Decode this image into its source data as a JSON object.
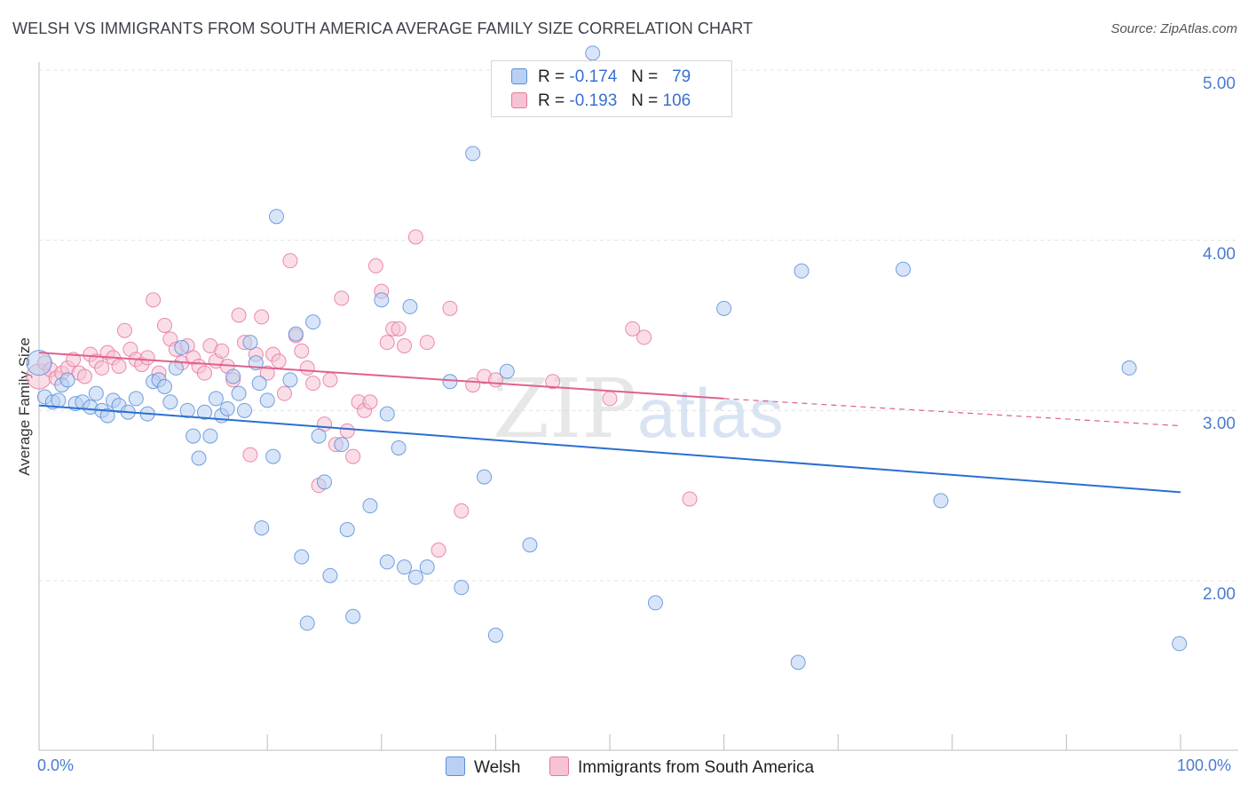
{
  "title": "WELSH VS IMMIGRANTS FROM SOUTH AMERICA AVERAGE FAMILY SIZE CORRELATION CHART",
  "source": "Source: ZipAtlas.com",
  "colors": {
    "welsh": "#5b8fd8",
    "welsh_fill": "#b8d0f2",
    "welsh_line": "#2a6fd0",
    "immigrants": "#e8779c",
    "immigrants_fill": "#f6c3d4",
    "immigrants_line": "#e0608c",
    "tick_text": "#4a7bd0"
  },
  "legend": {
    "r_label": "R =",
    "n_label": "N =",
    "welsh": {
      "r": "-0.174",
      "n": "79"
    },
    "immigrants": {
      "r": "-0.193",
      "n": "106"
    }
  },
  "watermark": {
    "zip": "ZIP",
    "atlas": "atlas"
  },
  "chart_data": {
    "type": "scatter",
    "title": "WELSH VS IMMIGRANTS FROM SOUTH AMERICA AVERAGE FAMILY SIZE CORRELATION CHART",
    "xlabel": "",
    "ylabel": "Average Family Size",
    "x_tick_labels": [
      "0.0%",
      "100.0%"
    ],
    "y_tick_labels": [
      "2.00",
      "3.00",
      "4.00",
      "5.00"
    ],
    "y_ticks": [
      2.0,
      3.0,
      4.0,
      5.0
    ],
    "xlim": [
      0,
      100
    ],
    "ylim": [
      1.0,
      5.1
    ],
    "grid": true,
    "legend_position": "bottom",
    "series": [
      {
        "name": "Welsh",
        "color": "#5b8fd8",
        "trend": {
          "x0": 0,
          "y0": 3.03,
          "x1": 100,
          "y1": 2.52
        },
        "points": [
          [
            0,
            3.28
          ],
          [
            0.5,
            3.08
          ],
          [
            1.2,
            3.05
          ],
          [
            1.7,
            3.06
          ],
          [
            2,
            3.15
          ],
          [
            2.5,
            3.18
          ],
          [
            3.2,
            3.04
          ],
          [
            3.8,
            3.05
          ],
          [
            4.5,
            3.02
          ],
          [
            5,
            3.1
          ],
          [
            5.5,
            3.0
          ],
          [
            6,
            2.97
          ],
          [
            6.5,
            3.06
          ],
          [
            7,
            3.03
          ],
          [
            7.8,
            2.99
          ],
          [
            8.5,
            3.07
          ],
          [
            9.5,
            2.98
          ],
          [
            10,
            3.17
          ],
          [
            10.5,
            3.18
          ],
          [
            11,
            3.14
          ],
          [
            11.5,
            3.05
          ],
          [
            12,
            3.25
          ],
          [
            12.5,
            3.37
          ],
          [
            13,
            3.0
          ],
          [
            13.5,
            2.85
          ],
          [
            14,
            2.72
          ],
          [
            14.5,
            2.99
          ],
          [
            15,
            2.85
          ],
          [
            15.5,
            3.07
          ],
          [
            16,
            2.97
          ],
          [
            16.5,
            3.01
          ],
          [
            17,
            3.2
          ],
          [
            17.5,
            3.1
          ],
          [
            18,
            3.0
          ],
          [
            18.5,
            3.4
          ],
          [
            19,
            3.28
          ],
          [
            19.3,
            3.16
          ],
          [
            19.5,
            2.31
          ],
          [
            20,
            3.06
          ],
          [
            20.5,
            2.73
          ],
          [
            20.8,
            4.14
          ],
          [
            22.5,
            3.45
          ],
          [
            22,
            3.18
          ],
          [
            23,
            2.14
          ],
          [
            23.5,
            1.75
          ],
          [
            24,
            3.52
          ],
          [
            24.5,
            2.85
          ],
          [
            25,
            2.58
          ],
          [
            25.5,
            2.03
          ],
          [
            26.5,
            2.8
          ],
          [
            27,
            2.3
          ],
          [
            27.5,
            1.79
          ],
          [
            29,
            2.44
          ],
          [
            30,
            3.65
          ],
          [
            30.5,
            2.11
          ],
          [
            30.5,
            2.98
          ],
          [
            31.5,
            2.78
          ],
          [
            32,
            2.08
          ],
          [
            32.5,
            3.61
          ],
          [
            33,
            2.02
          ],
          [
            34,
            2.08
          ],
          [
            36,
            3.17
          ],
          [
            37,
            1.96
          ],
          [
            38,
            4.51
          ],
          [
            39,
            2.61
          ],
          [
            40,
            1.68
          ],
          [
            41,
            3.23
          ],
          [
            43,
            2.21
          ],
          [
            48.5,
            5.1
          ],
          [
            54,
            1.87
          ],
          [
            60,
            3.6
          ],
          [
            66.5,
            1.52
          ],
          [
            66.8,
            3.82
          ],
          [
            75.7,
            3.83
          ],
          [
            79,
            2.47
          ],
          [
            95.5,
            3.25
          ],
          [
            99.9,
            1.63
          ]
        ]
      },
      {
        "name": "Immigrants from South America",
        "color": "#e8779c",
        "trend": {
          "x0": 0,
          "y0": 3.34,
          "x1": 60,
          "y1": 3.07,
          "dashed_to_x": 100,
          "dashed_to_y": 2.91
        },
        "points": [
          [
            0,
            3.2
          ],
          [
            0.5,
            3.28
          ],
          [
            1,
            3.24
          ],
          [
            1.5,
            3.19
          ],
          [
            2,
            3.22
          ],
          [
            2.5,
            3.25
          ],
          [
            3,
            3.3
          ],
          [
            3.5,
            3.22
          ],
          [
            4,
            3.2
          ],
          [
            4.5,
            3.33
          ],
          [
            5,
            3.29
          ],
          [
            5.5,
            3.25
          ],
          [
            6,
            3.34
          ],
          [
            6.5,
            3.31
          ],
          [
            7,
            3.26
          ],
          [
            7.5,
            3.47
          ],
          [
            8,
            3.36
          ],
          [
            8.5,
            3.3
          ],
          [
            9,
            3.27
          ],
          [
            9.5,
            3.31
          ],
          [
            10,
            3.65
          ],
          [
            10.5,
            3.22
          ],
          [
            11,
            3.5
          ],
          [
            11.5,
            3.42
          ],
          [
            12,
            3.36
          ],
          [
            12.5,
            3.28
          ],
          [
            13,
            3.38
          ],
          [
            13.5,
            3.31
          ],
          [
            14,
            3.26
          ],
          [
            14.5,
            3.22
          ],
          [
            15,
            3.38
          ],
          [
            15.5,
            3.29
          ],
          [
            16,
            3.35
          ],
          [
            16.5,
            3.26
          ],
          [
            17,
            3.18
          ],
          [
            17.5,
            3.56
          ],
          [
            18,
            3.4
          ],
          [
            18.5,
            2.74
          ],
          [
            19,
            3.33
          ],
          [
            19.5,
            3.55
          ],
          [
            20,
            3.22
          ],
          [
            20.5,
            3.33
          ],
          [
            21,
            3.29
          ],
          [
            21.5,
            3.1
          ],
          [
            22,
            3.88
          ],
          [
            22.5,
            3.44
          ],
          [
            23,
            3.35
          ],
          [
            23.5,
            3.25
          ],
          [
            24,
            3.16
          ],
          [
            24.5,
            2.56
          ],
          [
            25,
            2.92
          ],
          [
            25.5,
            3.18
          ],
          [
            26,
            2.8
          ],
          [
            26.5,
            3.66
          ],
          [
            27,
            2.88
          ],
          [
            27.5,
            2.73
          ],
          [
            28,
            3.05
          ],
          [
            28.5,
            3.0
          ],
          [
            29,
            3.05
          ],
          [
            29.5,
            3.85
          ],
          [
            30,
            3.7
          ],
          [
            30.5,
            3.4
          ],
          [
            31,
            3.48
          ],
          [
            31.5,
            3.48
          ],
          [
            32,
            3.38
          ],
          [
            33,
            4.02
          ],
          [
            34,
            3.4
          ],
          [
            35,
            2.18
          ],
          [
            36,
            3.6
          ],
          [
            37,
            2.41
          ],
          [
            38,
            3.15
          ],
          [
            39,
            3.2
          ],
          [
            40,
            3.18
          ],
          [
            45,
            3.17
          ],
          [
            50,
            3.07
          ],
          [
            52,
            3.48
          ],
          [
            53,
            3.43
          ],
          [
            57,
            2.48
          ]
        ]
      }
    ]
  },
  "bottom_legend": {
    "welsh": "Welsh",
    "immigrants": "Immigrants from South America"
  }
}
